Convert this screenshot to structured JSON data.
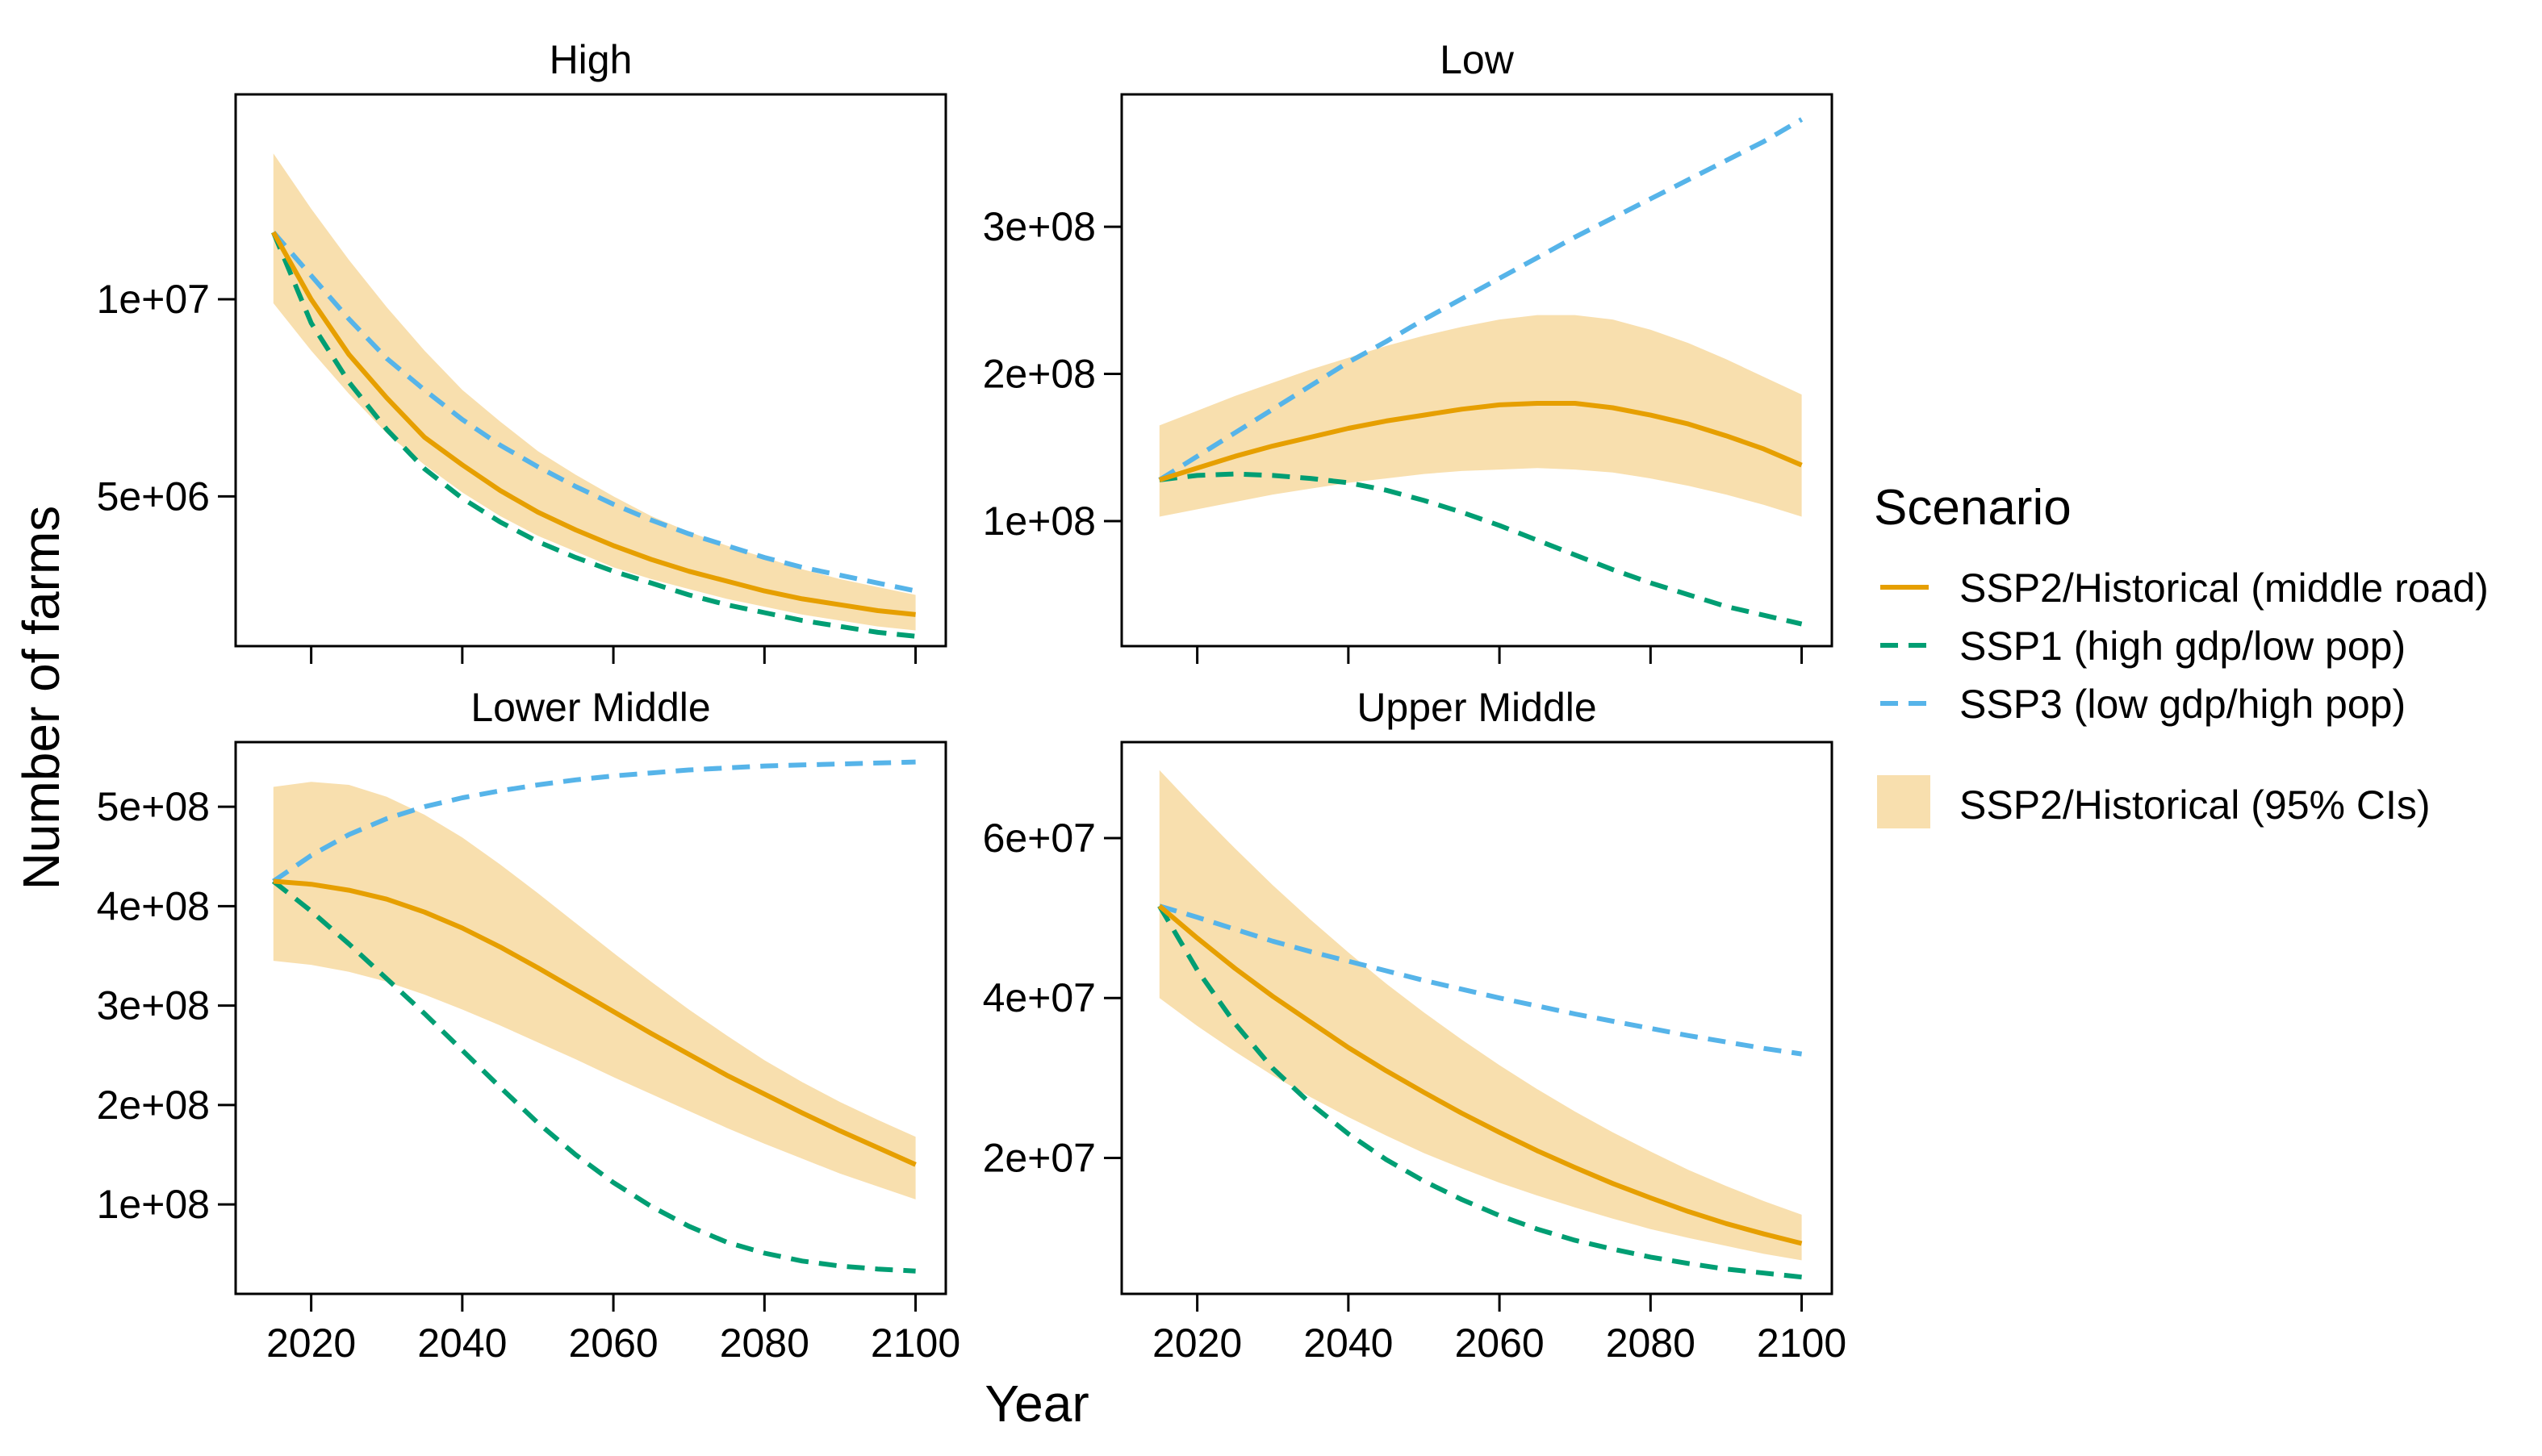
{
  "chart_data": {
    "type": "line",
    "xlabel": "Year",
    "ylabel": "Number of farms",
    "legend": {
      "title": "Scenario",
      "placement": "right",
      "entries": [
        {
          "label": "SSP2/Historical (middle road)",
          "color": "#E69F00",
          "style": "solid"
        },
        {
          "label": "SSP1 (high gdp/low pop)",
          "color": "#009E73",
          "style": "dashed"
        },
        {
          "label": "SSP3 (low gdp/high pop)",
          "color": "#56B4E9",
          "style": "dashed"
        },
        {
          "label": "SSP2/Historical (95% CIs)",
          "color": "#F8DFAE",
          "style": "band"
        }
      ]
    },
    "panels": [
      {
        "title": "High",
        "x": [
          2015,
          2020,
          2025,
          2030,
          2035,
          2040,
          2045,
          2050,
          2055,
          2060,
          2065,
          2070,
          2075,
          2080,
          2085,
          2090,
          2095,
          2100
        ],
        "xlim": [
          2010,
          2104
        ],
        "ylim": [
          1200000,
          15200000
        ],
        "xticks": [
          2020,
          2040,
          2060,
          2080,
          2100
        ],
        "xtick_labels": [],
        "yticks": [
          5000000,
          10000000
        ],
        "ytick_labels": [
          "5e+06",
          "1e+07"
        ],
        "series": [
          {
            "color": "#E69F00",
            "style": "solid",
            "values": [
              11700000,
              10000000,
              8600000,
              7500000,
              6500000,
              5800000,
              5150000,
              4600000,
              4150000,
              3750000,
              3400000,
              3100000,
              2850000,
              2600000,
              2400000,
              2250000,
              2100000,
              2000000
            ]
          },
          {
            "color": "#009E73",
            "style": "dashed",
            "values": [
              11700000,
              9400000,
              7900000,
              6700000,
              5700000,
              4950000,
              4350000,
              3850000,
              3450000,
              3100000,
              2800000,
              2500000,
              2250000,
              2050000,
              1850000,
              1700000,
              1550000,
              1450000
            ]
          },
          {
            "color": "#56B4E9",
            "style": "dashed",
            "values": [
              11700000,
              10600000,
              9500000,
              8500000,
              7700000,
              6950000,
              6300000,
              5750000,
              5250000,
              4800000,
              4400000,
              4050000,
              3750000,
              3450000,
              3200000,
              3000000,
              2800000,
              2600000
            ]
          }
        ],
        "band": {
          "lower": [
            9900000,
            8700000,
            7600000,
            6600000,
            5800000,
            5100000,
            4500000,
            4000000,
            3600000,
            3200000,
            2900000,
            2650000,
            2400000,
            2200000,
            2000000,
            1850000,
            1700000,
            1600000
          ],
          "upper": [
            13700000,
            12300000,
            11000000,
            9800000,
            8700000,
            7700000,
            6900000,
            6150000,
            5550000,
            5000000,
            4500000,
            4100000,
            3750000,
            3450000,
            3150000,
            2900000,
            2700000,
            2500000
          ]
        }
      },
      {
        "title": "Low",
        "x": [
          2015,
          2020,
          2025,
          2030,
          2035,
          2040,
          2045,
          2050,
          2055,
          2060,
          2065,
          2070,
          2075,
          2080,
          2085,
          2090,
          2095,
          2100
        ],
        "xlim": [
          2010,
          2104
        ],
        "ylim": [
          15000000,
          390000000
        ],
        "xticks": [
          2020,
          2040,
          2060,
          2080,
          2100
        ],
        "xtick_labels": [],
        "yticks": [
          100000000,
          200000000,
          300000000
        ],
        "ytick_labels": [
          "1e+08",
          "2e+08",
          "3e+08"
        ],
        "series": [
          {
            "color": "#E69F00",
            "style": "solid",
            "values": [
              128000000,
              136000000,
              144000000,
              151000000,
              157000000,
              163000000,
              168000000,
              172000000,
              176000000,
              179000000,
              180000000,
              180000000,
              177000000,
              172000000,
              166000000,
              158000000,
              149000000,
              138000000
            ]
          },
          {
            "color": "#009E73",
            "style": "dashed",
            "values": [
              128000000,
              131000000,
              132000000,
              131000000,
              129000000,
              126000000,
              121000000,
              114000000,
              106000000,
              97000000,
              87000000,
              77000000,
              67000000,
              58000000,
              50000000,
              42000000,
              36000000,
              30000000
            ]
          },
          {
            "color": "#56B4E9",
            "style": "dashed",
            "values": [
              128000000,
              144000000,
              160000000,
              176000000,
              192000000,
              208000000,
              222000000,
              237000000,
              251000000,
              265000000,
              279000000,
              293000000,
              306000000,
              319000000,
              332000000,
              345000000,
              358000000,
              373000000
            ]
          }
        ],
        "band": {
          "lower": [
            103000000,
            108000000,
            113000000,
            118000000,
            122000000,
            126000000,
            129000000,
            132000000,
            134000000,
            135000000,
            136000000,
            135000000,
            133000000,
            129000000,
            124000000,
            118000000,
            111000000,
            103000000
          ],
          "upper": [
            165000000,
            175000000,
            185000000,
            194000000,
            203000000,
            211000000,
            219000000,
            226000000,
            232000000,
            237000000,
            240000000,
            240000000,
            237000000,
            230000000,
            221000000,
            210000000,
            198000000,
            186000000
          ]
        }
      },
      {
        "title": "Lower Middle",
        "x": [
          2015,
          2020,
          2025,
          2030,
          2035,
          2040,
          2045,
          2050,
          2055,
          2060,
          2065,
          2070,
          2075,
          2080,
          2085,
          2090,
          2095,
          2100
        ],
        "xlim": [
          2010,
          2104
        ],
        "ylim": [
          10000000,
          565000000
        ],
        "xticks": [
          2020,
          2040,
          2060,
          2080,
          2100
        ],
        "xtick_labels": [
          "2020",
          "2040",
          "2060",
          "2080",
          "2100"
        ],
        "yticks": [
          100000000,
          200000000,
          300000000,
          400000000,
          500000000
        ],
        "ytick_labels": [
          "1e+08",
          "2e+08",
          "3e+08",
          "4e+08",
          "5e+08"
        ],
        "series": [
          {
            "color": "#E69F00",
            "style": "solid",
            "values": [
              425000000,
              422000000,
              416000000,
              407000000,
              394000000,
              378000000,
              359000000,
              338000000,
              316000000,
              294000000,
              272000000,
              251000000,
              230000000,
              211000000,
              192000000,
              174000000,
              157000000,
              140000000
            ]
          },
          {
            "color": "#009E73",
            "style": "dashed",
            "values": [
              425000000,
              395000000,
              362000000,
              327000000,
              292000000,
              255000000,
              218000000,
              182000000,
              150000000,
              122000000,
              98000000,
              78000000,
              62000000,
              51000000,
              43000000,
              38000000,
              35000000,
              33000000
            ]
          },
          {
            "color": "#56B4E9",
            "style": "dashed",
            "values": [
              425000000,
              451000000,
              472000000,
              488000000,
              500000000,
              509000000,
              516000000,
              522000000,
              527000000,
              531000000,
              534000000,
              537000000,
              539000000,
              541000000,
              542000000,
              543000000,
              544000000,
              545000000
            ]
          }
        ],
        "band": {
          "lower": [
            345000000,
            341000000,
            334000000,
            324000000,
            311000000,
            296000000,
            280000000,
            263000000,
            246000000,
            228000000,
            211000000,
            194000000,
            177000000,
            161000000,
            146000000,
            131000000,
            118000000,
            105000000
          ],
          "upper": [
            520000000,
            525000000,
            522000000,
            510000000,
            492000000,
            469000000,
            442000000,
            413000000,
            383000000,
            353000000,
            324000000,
            296000000,
            270000000,
            245000000,
            223000000,
            203000000,
            185000000,
            168000000
          ]
        }
      },
      {
        "title": "Upper Middle",
        "x": [
          2015,
          2020,
          2025,
          2030,
          2035,
          2040,
          2045,
          2050,
          2055,
          2060,
          2065,
          2070,
          2075,
          2080,
          2085,
          2090,
          2095,
          2100
        ],
        "xlim": [
          2010,
          2104
        ],
        "ylim": [
          3000000,
          72000000
        ],
        "xticks": [
          2020,
          2040,
          2060,
          2080,
          2100
        ],
        "xtick_labels": [
          "2020",
          "2040",
          "2060",
          "2080",
          "2100"
        ],
        "yticks": [
          20000000,
          40000000,
          60000000
        ],
        "ytick_labels": [
          "2e+07",
          "4e+07",
          "6e+07"
        ],
        "series": [
          {
            "color": "#E69F00",
            "style": "solid",
            "values": [
              51500000,
              47500000,
              43700000,
              40200000,
              37000000,
              33800000,
              30900000,
              28200000,
              25600000,
              23200000,
              20900000,
              18800000,
              16800000,
              15000000,
              13300000,
              11800000,
              10500000,
              9300000
            ]
          },
          {
            "color": "#009E73",
            "style": "dashed",
            "values": [
              51500000,
              43500000,
              36800000,
              31200000,
              26800000,
              23000000,
              19800000,
              17100000,
              14800000,
              12800000,
              11100000,
              9700000,
              8600000,
              7600000,
              6800000,
              6100000,
              5600000,
              5100000
            ]
          },
          {
            "color": "#56B4E9",
            "style": "dashed",
            "values": [
              51500000,
              50100000,
              48600000,
              47100000,
              45800000,
              44600000,
              43400000,
              42200000,
              41100000,
              40000000,
              39000000,
              38000000,
              37100000,
              36200000,
              35300000,
              34500000,
              33700000,
              33000000
            ]
          }
        ],
        "band": {
          "lower": [
            40000000,
            36500000,
            33300000,
            30300000,
            27600000,
            25100000,
            22800000,
            20600000,
            18700000,
            16900000,
            15300000,
            13800000,
            12400000,
            11100000,
            10000000,
            9000000,
            8000000,
            7200000
          ],
          "upper": [
            68500000,
            63500000,
            58700000,
            54100000,
            49800000,
            45700000,
            41800000,
            38200000,
            34800000,
            31600000,
            28600000,
            25800000,
            23200000,
            20800000,
            18500000,
            16500000,
            14600000,
            12900000
          ]
        }
      }
    ]
  }
}
